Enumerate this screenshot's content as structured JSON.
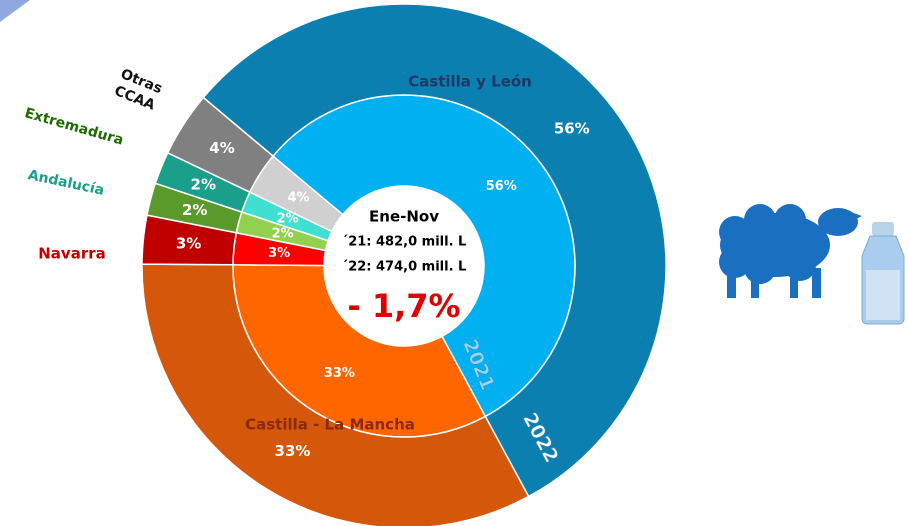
{
  "chart_data": {
    "type": "donut",
    "categories": [
      "Castilla y León",
      "Castilla - La Mancha",
      "Navarra",
      "Extremadura",
      "Andalucía",
      "Otras CCAA"
    ],
    "series": [
      {
        "name": "2021",
        "colors": [
          "#00b0f0",
          "#ff6600",
          "#ff0000",
          "#92d050",
          "#40e0d0",
          "#d0d0d0"
        ],
        "values": [
          56,
          33,
          3,
          2,
          2,
          4
        ],
        "value_labels": [
          "56%",
          "33%",
          "3%",
          "2%",
          "2%",
          "4%"
        ]
      },
      {
        "name": "2022",
        "colors": [
          "#0a7fb0",
          "#d4570a",
          "#c00000",
          "#5a9a2a",
          "#1aa08a",
          "#808080"
        ],
        "values": [
          56,
          33,
          3,
          2,
          2,
          4
        ],
        "value_labels": [
          "56%",
          "33%",
          "3%",
          "2%",
          "2%",
          "4%"
        ]
      }
    ],
    "center_text": [
      "Ene-Nov",
      "´21: 482,0 mill. L",
      "´22: 474,0 mill. L",
      "- 1,7%"
    ]
  }
}
